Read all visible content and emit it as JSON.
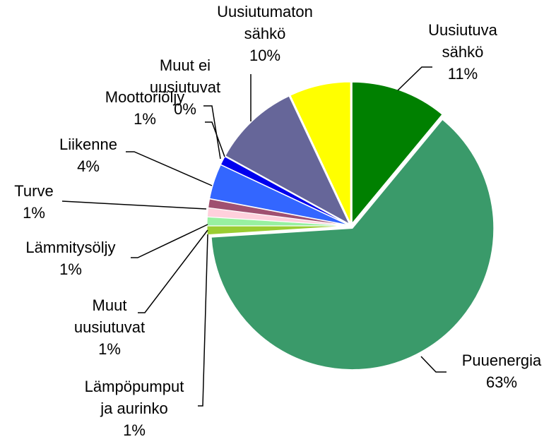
{
  "chart_data": {
    "type": "pie",
    "categories": [
      "Uusiutuva\nsähkö",
      "Puuenergia",
      "Lämpöpumput\nja aurinko",
      "Muut\nuusiutuvat",
      "Lämmitysöljy",
      "Turve",
      "Liikenne",
      "Moottoriöljy",
      "Muut ei\nuusiutuvat",
      "Uusiutumaton\nsähkö",
      null
    ],
    "values": [
      11,
      63,
      1,
      1,
      1,
      1,
      4,
      1,
      0,
      10,
      7
    ],
    "value_labels": [
      "11%",
      "63%",
      "1%",
      "1%",
      "1%",
      "1%",
      "4%",
      "1%",
      "0%",
      "10%",
      null
    ],
    "colors": [
      "#008000",
      "#3a9a6a",
      "#9acd32",
      "#98f0a0",
      "#ffd0dc",
      "#a05070",
      "#3366ff",
      "#0000ee",
      "#00aaaa",
      "#666699",
      "#ffff00"
    ]
  }
}
